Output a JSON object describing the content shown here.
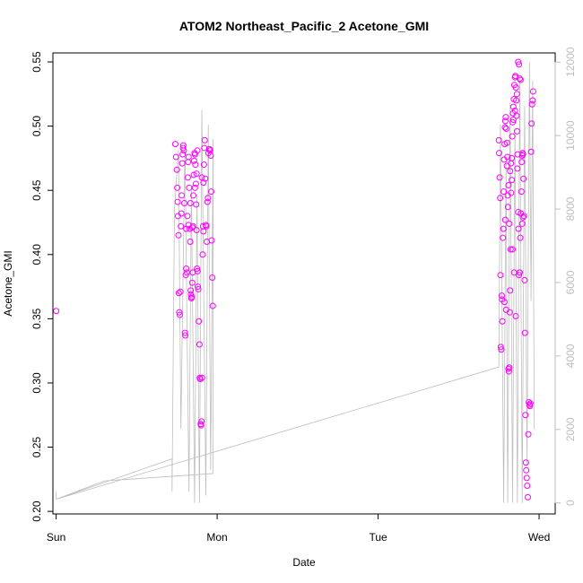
{
  "chart_data": {
    "type": "scatter",
    "title": "ATOM2 Northeast_Pacific_2 Acetone_GMI",
    "xlabel": "Date",
    "ylabel": "Acetone_GMI",
    "x_ticks": [
      "Sun",
      "Mon",
      "Tue",
      "Wed"
    ],
    "x_range": [
      -0.02,
      3.1
    ],
    "ylim": [
      0.198,
      0.557
    ],
    "y_ticks": [
      0.2,
      0.25,
      0.3,
      0.35,
      0.4,
      0.45,
      0.5,
      0.55
    ],
    "y2lim": [
      -300,
      12250
    ],
    "y2_ticks": [
      0,
      2000,
      4000,
      6000,
      8000,
      10000,
      12000
    ],
    "grid": false,
    "colors": {
      "points": "#ff00ff",
      "line": "#bebebe",
      "axis": "#000000",
      "right_axis": "#bebebe"
    },
    "series": [
      {
        "axis": "left",
        "style": "points",
        "points": [
          [
            0.0,
            0.356
          ],
          [
            0.74,
            0.486
          ],
          [
            0.745,
            0.476
          ],
          [
            0.75,
            0.466
          ],
          [
            0.752,
            0.452
          ],
          [
            0.755,
            0.441
          ],
          [
            0.757,
            0.43
          ],
          [
            0.76,
            0.415
          ],
          [
            0.762,
            0.37
          ],
          [
            0.765,
            0.355
          ],
          [
            0.768,
            0.353
          ],
          [
            0.772,
            0.371
          ],
          [
            0.775,
            0.422
          ],
          [
            0.778,
            0.432
          ],
          [
            0.78,
            0.446
          ],
          [
            0.783,
            0.471
          ],
          [
            0.786,
            0.478
          ],
          [
            0.788,
            0.483
          ],
          [
            0.79,
            0.485
          ],
          [
            0.793,
            0.481
          ],
          [
            0.796,
            0.44
          ],
          [
            0.8,
            0.339
          ],
          [
            0.802,
            0.337
          ],
          [
            0.805,
            0.384
          ],
          [
            0.808,
            0.389
          ],
          [
            0.812,
            0.386
          ],
          [
            0.815,
            0.43
          ],
          [
            0.818,
            0.46
          ],
          [
            0.82,
            0.472
          ],
          [
            0.823,
            0.476
          ],
          [
            0.826,
            0.452
          ],
          [
            0.83,
            0.42
          ],
          [
            0.833,
            0.41
          ],
          [
            0.836,
            0.372
          ],
          [
            0.838,
            0.369
          ],
          [
            0.84,
            0.366
          ],
          [
            0.842,
            0.367
          ],
          [
            0.845,
            0.378
          ],
          [
            0.848,
            0.386
          ],
          [
            0.85,
            0.422
          ],
          [
            0.852,
            0.446
          ],
          [
            0.855,
            0.462
          ],
          [
            0.857,
            0.473
          ],
          [
            0.86,
            0.479
          ],
          [
            0.862,
            0.478
          ],
          [
            0.865,
            0.47
          ],
          [
            0.868,
            0.455
          ],
          [
            0.87,
            0.439
          ],
          [
            0.872,
            0.419
          ],
          [
            0.875,
            0.389
          ],
          [
            0.878,
            0.387
          ],
          [
            0.88,
            0.375
          ],
          [
            0.883,
            0.373
          ],
          [
            0.886,
            0.348
          ],
          [
            0.89,
            0.33
          ],
          [
            0.892,
            0.304
          ],
          [
            0.895,
            0.303
          ],
          [
            0.898,
            0.268
          ],
          [
            0.9,
            0.267
          ],
          [
            0.903,
            0.27
          ],
          [
            0.906,
            0.304
          ],
          [
            0.91,
            0.4
          ],
          [
            0.912,
            0.422
          ],
          [
            0.915,
            0.456
          ],
          [
            0.918,
            0.47
          ],
          [
            0.92,
            0.483
          ],
          [
            0.923,
            0.489
          ],
          [
            0.926,
            0.459
          ],
          [
            0.93,
            0.423
          ],
          [
            0.933,
            0.422
          ],
          [
            0.936,
            0.41
          ],
          [
            0.94,
            0.441
          ],
          [
            0.943,
            0.444
          ],
          [
            0.946,
            0.479
          ],
          [
            0.95,
            0.482
          ],
          [
            0.953,
            0.482
          ],
          [
            0.956,
            0.481
          ],
          [
            0.96,
            0.477
          ],
          [
            0.963,
            0.449
          ],
          [
            0.966,
            0.411
          ],
          [
            0.97,
            0.382
          ],
          [
            0.973,
            0.36
          ],
          [
            0.877,
            0.481
          ],
          [
            0.872,
            0.463
          ],
          [
            0.862,
            0.452
          ],
          [
            0.846,
            0.421
          ],
          [
            0.834,
            0.44
          ],
          [
            0.822,
            0.423
          ],
          [
            0.808,
            0.42
          ],
          [
            0.905,
            0.46
          ],
          [
            0.915,
            0.418
          ],
          [
            2.75,
            0.489
          ],
          [
            2.752,
            0.479
          ],
          [
            2.755,
            0.46
          ],
          [
            2.758,
            0.444
          ],
          [
            2.76,
            0.384
          ],
          [
            2.762,
            0.328
          ],
          [
            2.765,
            0.326
          ],
          [
            2.768,
            0.368
          ],
          [
            2.77,
            0.365
          ],
          [
            2.772,
            0.348
          ],
          [
            2.775,
            0.413
          ],
          [
            2.778,
            0.42
          ],
          [
            2.78,
            0.449
          ],
          [
            2.783,
            0.474
          ],
          [
            2.786,
            0.486
          ],
          [
            2.788,
            0.499
          ],
          [
            2.79,
            0.504
          ],
          [
            2.793,
            0.507
          ],
          [
            2.796,
            0.498
          ],
          [
            2.8,
            0.487
          ],
          [
            2.803,
            0.476
          ],
          [
            2.806,
            0.437
          ],
          [
            2.81,
            0.311
          ],
          [
            2.812,
            0.309
          ],
          [
            2.815,
            0.312
          ],
          [
            2.818,
            0.355
          ],
          [
            2.82,
            0.372
          ],
          [
            2.823,
            0.404
          ],
          [
            2.826,
            0.448
          ],
          [
            2.83,
            0.475
          ],
          [
            2.833,
            0.492
          ],
          [
            2.836,
            0.503
          ],
          [
            2.838,
            0.51
          ],
          [
            2.84,
            0.515
          ],
          [
            2.843,
            0.521
          ],
          [
            2.846,
            0.532
          ],
          [
            2.85,
            0.538
          ],
          [
            2.853,
            0.539
          ],
          [
            2.856,
            0.53
          ],
          [
            2.858,
            0.52
          ],
          [
            2.86,
            0.508
          ],
          [
            2.863,
            0.496
          ],
          [
            2.866,
            0.478
          ],
          [
            2.87,
            0.433
          ],
          [
            2.872,
            0.42
          ],
          [
            2.875,
            0.384
          ],
          [
            2.878,
            0.386
          ],
          [
            2.88,
            0.386
          ],
          [
            2.883,
            0.413
          ],
          [
            2.886,
            0.432
          ],
          [
            2.89,
            0.449
          ],
          [
            2.892,
            0.472
          ],
          [
            2.895,
            0.477
          ],
          [
            2.898,
            0.479
          ],
          [
            2.9,
            0.478
          ],
          [
            2.903,
            0.459
          ],
          [
            2.906,
            0.43
          ],
          [
            2.91,
            0.38
          ],
          [
            2.912,
            0.339
          ],
          [
            2.915,
            0.275
          ],
          [
            2.918,
            0.238
          ],
          [
            2.92,
            0.232
          ],
          [
            2.923,
            0.226
          ],
          [
            2.926,
            0.22
          ],
          [
            2.93,
            0.211
          ],
          [
            2.933,
            0.26
          ],
          [
            2.936,
            0.285
          ],
          [
            2.94,
            0.283
          ],
          [
            2.943,
            0.282
          ],
          [
            2.946,
            0.284
          ],
          [
            2.95,
            0.48
          ],
          [
            2.953,
            0.502
          ],
          [
            2.956,
            0.517
          ],
          [
            2.96,
            0.52
          ],
          [
            2.963,
            0.527
          ],
          [
            2.87,
            0.55
          ],
          [
            2.875,
            0.548
          ],
          [
            2.88,
            0.537
          ],
          [
            2.885,
            0.536
          ],
          [
            2.862,
            0.525
          ],
          [
            2.85,
            0.512
          ],
          [
            2.84,
            0.505
          ],
          [
            2.83,
            0.458
          ],
          [
            2.82,
            0.465
          ],
          [
            2.81,
            0.454
          ],
          [
            2.8,
            0.469
          ],
          [
            2.79,
            0.427
          ],
          [
            2.785,
            0.363
          ],
          [
            2.795,
            0.357
          ],
          [
            2.805,
            0.446
          ],
          [
            2.815,
            0.424
          ],
          [
            2.825,
            0.471
          ],
          [
            2.835,
            0.404
          ],
          [
            2.845,
            0.386
          ],
          [
            2.855,
            0.352
          ],
          [
            2.865,
            0.467
          ],
          [
            2.895,
            0.424
          ],
          [
            2.9,
            0.429
          ]
        ]
      },
      {
        "axis": "right",
        "style": "line",
        "points": [
          [
            0.0,
            300
          ],
          [
            0.0,
            100
          ],
          [
            0.72,
            1200
          ],
          [
            0.72,
            300
          ],
          [
            0.735,
            8000
          ],
          [
            0.76,
            9600
          ],
          [
            0.775,
            2000
          ],
          [
            0.8,
            9800
          ],
          [
            0.825,
            300
          ],
          [
            0.84,
            8600
          ],
          [
            0.86,
            0
          ],
          [
            0.875,
            8400
          ],
          [
            0.89,
            0
          ],
          [
            0.905,
            10700
          ],
          [
            0.93,
            200
          ],
          [
            0.945,
            10300
          ],
          [
            0.96,
            900
          ],
          [
            0.975,
            9900
          ],
          [
            0.975,
            800
          ],
          [
            0.3,
            600
          ],
          [
            0.0,
            100
          ],
          [
            2.75,
            3700
          ],
          [
            2.76,
            10300
          ],
          [
            2.78,
            0
          ],
          [
            2.795,
            9300
          ],
          [
            2.805,
            0
          ],
          [
            2.82,
            10900
          ],
          [
            2.835,
            0
          ],
          [
            2.85,
            10200
          ],
          [
            2.865,
            0
          ],
          [
            2.88,
            11600
          ],
          [
            2.895,
            0
          ],
          [
            2.91,
            10800
          ],
          [
            2.925,
            1000
          ],
          [
            2.94,
            12000
          ],
          [
            2.95,
            5500
          ],
          [
            2.96,
            11500
          ],
          [
            2.97,
            2000
          ]
        ]
      }
    ]
  }
}
